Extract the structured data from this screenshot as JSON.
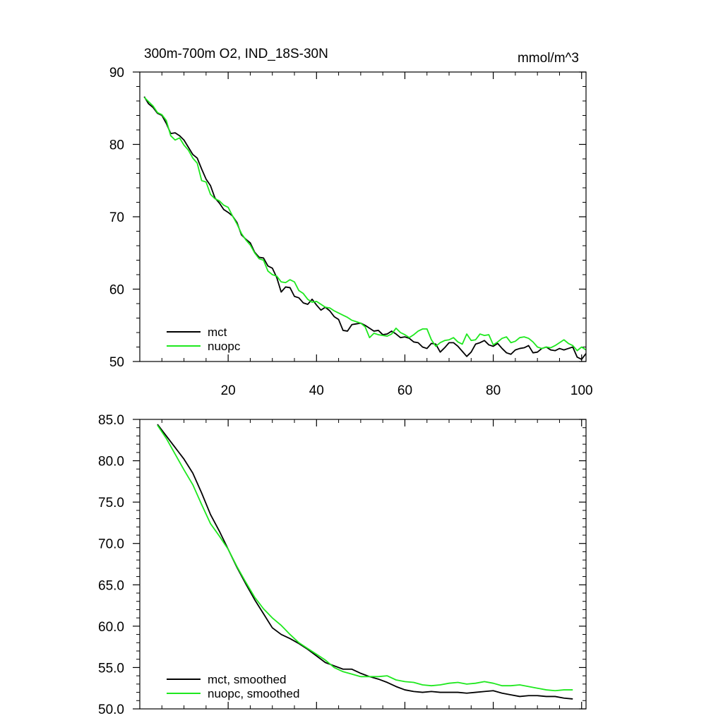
{
  "chart_data": [
    {
      "type": "line",
      "title": "300m-700m O2, IND_18S-30N",
      "units_label": "mmol/m^3",
      "xlabel": "",
      "ylabel": "",
      "xlim": [
        0,
        101
      ],
      "ylim": [
        50,
        90
      ],
      "x_ticks": [
        20,
        40,
        60,
        80,
        100
      ],
      "x_tick_labels": [
        "20",
        "40",
        "60",
        "80",
        "100"
      ],
      "y_ticks": [
        50,
        60,
        70,
        80,
        90
      ],
      "y_tick_labels": [
        "50",
        "60",
        "70",
        "80",
        "90"
      ],
      "grid": false,
      "legend_position": "bottom-left",
      "series": [
        {
          "name": "mct",
          "color": "#000000",
          "x": [
            1,
            2,
            3,
            4,
            5,
            6,
            7,
            8,
            9,
            10,
            11,
            12,
            13,
            14,
            15,
            16,
            17,
            18,
            19,
            20,
            21,
            22,
            23,
            24,
            25,
            26,
            27,
            28,
            29,
            30,
            31,
            32,
            33,
            34,
            35,
            36,
            37,
            38,
            39,
            40,
            41,
            42,
            43,
            44,
            45,
            46,
            47,
            48,
            49,
            50,
            51,
            52,
            53,
            54,
            55,
            56,
            57,
            58,
            59,
            60,
            61,
            62,
            63,
            64,
            65,
            66,
            67,
            68,
            69,
            70,
            71,
            72,
            73,
            74,
            75,
            76,
            77,
            78,
            79,
            80,
            81,
            82,
            83,
            84,
            85,
            86,
            87,
            88,
            89,
            90,
            91,
            92,
            93,
            94,
            95,
            96,
            97,
            98,
            99,
            100,
            101
          ],
          "values": [
            86.6,
            85.6,
            85.1,
            84.3,
            84.0,
            82.9,
            81.5,
            81.6,
            81.2,
            80.6,
            79.6,
            78.6,
            78.1,
            76.6,
            75.2,
            74.3,
            72.6,
            71.9,
            71.0,
            70.6,
            70.1,
            69.2,
            67.5,
            66.9,
            66.4,
            65.1,
            64.4,
            64.3,
            63.2,
            62.9,
            61.6,
            59.6,
            60.3,
            60.2,
            59.0,
            58.8,
            58.1,
            57.9,
            58.6,
            57.8,
            57.1,
            57.5,
            57.0,
            56.2,
            55.8,
            54.3,
            54.2,
            55.1,
            55.2,
            55.3,
            55.0,
            54.6,
            54.2,
            54.3,
            53.7,
            53.8,
            54.2,
            53.8,
            53.3,
            53.4,
            53.2,
            52.7,
            52.6,
            52.0,
            51.8,
            52.5,
            52.4,
            51.3,
            51.9,
            52.6,
            52.6,
            52.1,
            51.4,
            50.7,
            51.3,
            52.4,
            52.6,
            52.9,
            52.3,
            52.1,
            52.5,
            51.8,
            51.2,
            51.0,
            51.6,
            51.8,
            51.9,
            52.2,
            51.2,
            51.3,
            51.8,
            52.0,
            51.6,
            51.5,
            51.8,
            51.6,
            51.8,
            52.0,
            50.6,
            50.3,
            51.1
          ]
        },
        {
          "name": "nuopc",
          "color": "#1ee81e",
          "x": [
            1,
            2,
            3,
            4,
            5,
            6,
            7,
            8,
            9,
            10,
            11,
            12,
            13,
            14,
            15,
            16,
            17,
            18,
            19,
            20,
            21,
            22,
            23,
            24,
            25,
            26,
            27,
            28,
            29,
            30,
            31,
            32,
            33,
            34,
            35,
            36,
            37,
            38,
            39,
            40,
            41,
            42,
            43,
            44,
            45,
            46,
            47,
            48,
            49,
            50,
            51,
            52,
            53,
            54,
            55,
            56,
            57,
            58,
            59,
            60,
            61,
            62,
            63,
            64,
            65,
            66,
            67,
            68,
            69,
            70,
            71,
            72,
            73,
            74,
            75,
            76,
            77,
            78,
            79,
            80,
            81,
            82,
            83,
            84,
            85,
            86,
            87,
            88,
            89,
            90,
            91,
            92,
            93,
            94,
            95,
            96,
            97,
            98,
            99,
            100,
            101
          ],
          "values": [
            86.5,
            85.9,
            85.3,
            84.4,
            84.1,
            83.3,
            81.2,
            80.6,
            80.9,
            79.9,
            79.2,
            78.1,
            77.4,
            75.0,
            74.8,
            73.1,
            72.5,
            72.2,
            71.6,
            71.3,
            70.1,
            69.0,
            67.7,
            66.8,
            66.1,
            65.0,
            64.2,
            64.0,
            62.5,
            62.0,
            61.8,
            61.0,
            60.9,
            61.3,
            61.0,
            59.8,
            59.4,
            58.6,
            58.2,
            58.3,
            57.9,
            57.5,
            57.4,
            57.0,
            56.7,
            56.4,
            56.1,
            55.7,
            55.5,
            55.3,
            54.8,
            53.3,
            53.9,
            53.7,
            53.6,
            53.5,
            53.8,
            54.6,
            54.0,
            53.7,
            53.3,
            53.7,
            54.2,
            54.5,
            54.5,
            53.0,
            52.1,
            52.6,
            52.9,
            53.0,
            53.3,
            52.7,
            52.4,
            53.8,
            52.9,
            53.0,
            53.8,
            53.6,
            53.7,
            52.3,
            52.7,
            53.2,
            53.4,
            52.6,
            52.8,
            53.3,
            53.4,
            53.2,
            52.7,
            52.0,
            51.8,
            52.0,
            51.9,
            52.2,
            52.6,
            53.0,
            52.5,
            52.2,
            51.5,
            52.0,
            51.6
          ]
        }
      ]
    },
    {
      "type": "line",
      "title": "",
      "xlabel": "",
      "ylabel": "",
      "xlim": [
        0,
        101
      ],
      "ylim": [
        50,
        85
      ],
      "x_ticks": [
        20,
        40,
        60,
        80,
        100
      ],
      "x_tick_labels": [],
      "y_ticks": [
        50,
        55,
        60,
        65,
        70,
        75,
        80,
        85
      ],
      "y_tick_labels": [
        "50.0",
        "55.0",
        "60.0",
        "65.0",
        "70.0",
        "75.0",
        "80.0",
        "85.0"
      ],
      "grid": false,
      "legend_position": "bottom-left",
      "series": [
        {
          "name": "mct, smoothed",
          "color": "#000000",
          "x": [
            4,
            6,
            8,
            10,
            12,
            14,
            16,
            18,
            20,
            22,
            24,
            26,
            28,
            30,
            32,
            34,
            36,
            38,
            40,
            42,
            44,
            46,
            48,
            50,
            52,
            54,
            56,
            58,
            60,
            62,
            64,
            66,
            68,
            70,
            72,
            74,
            76,
            78,
            80,
            82,
            84,
            86,
            88,
            90,
            92,
            94,
            96,
            98
          ],
          "values": [
            84.4,
            83.0,
            81.6,
            80.2,
            78.5,
            76.1,
            73.5,
            71.5,
            69.3,
            67.1,
            65.1,
            63.2,
            61.5,
            59.8,
            59.0,
            58.5,
            57.9,
            57.2,
            56.4,
            55.6,
            55.2,
            54.8,
            54.8,
            54.3,
            53.9,
            53.6,
            53.2,
            52.7,
            52.3,
            52.1,
            52.0,
            52.1,
            52.0,
            52.0,
            52.0,
            51.9,
            52.0,
            52.1,
            52.2,
            51.9,
            51.7,
            51.5,
            51.6,
            51.6,
            51.5,
            51.5,
            51.3,
            51.2
          ]
        },
        {
          "name": "nuopc, smoothed",
          "color": "#1ee81e",
          "x": [
            4,
            6,
            8,
            10,
            12,
            14,
            16,
            18,
            20,
            22,
            24,
            26,
            28,
            30,
            32,
            34,
            36,
            38,
            40,
            42,
            44,
            46,
            48,
            50,
            52,
            54,
            56,
            58,
            60,
            62,
            64,
            66,
            68,
            70,
            72,
            74,
            76,
            78,
            80,
            82,
            84,
            86,
            88,
            90,
            92,
            94,
            96,
            98
          ],
          "values": [
            84.3,
            82.7,
            80.8,
            78.9,
            77.1,
            74.7,
            72.4,
            70.9,
            69.3,
            67.2,
            65.3,
            63.5,
            62.1,
            61.0,
            60.1,
            59.0,
            58.0,
            57.3,
            56.6,
            55.9,
            55.0,
            54.5,
            54.2,
            53.9,
            53.9,
            53.9,
            54.0,
            53.5,
            53.3,
            53.2,
            52.9,
            52.8,
            52.9,
            53.1,
            53.2,
            53.0,
            53.1,
            53.3,
            53.1,
            52.8,
            52.8,
            52.9,
            52.7,
            52.5,
            52.3,
            52.2,
            52.3,
            52.3
          ]
        }
      ]
    }
  ]
}
